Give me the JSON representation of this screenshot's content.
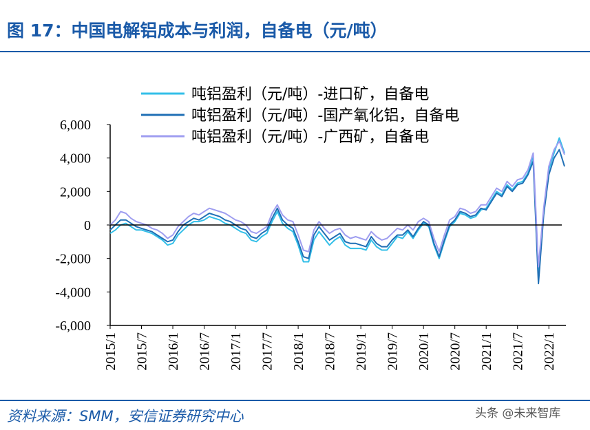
{
  "chart_data": {
    "type": "line",
    "title": "图 17：中国电解铝成本与利润，自备电（元/吨）",
    "source": "资料来源：SMM，安信证券研究中心",
    "watermark": "头条 @未来智库",
    "categories": [
      "2015/1",
      null,
      null,
      null,
      null,
      null,
      "2015/7",
      null,
      null,
      null,
      null,
      null,
      "2016/1",
      null,
      null,
      null,
      null,
      null,
      "2016/7",
      null,
      null,
      null,
      null,
      null,
      "2017/1",
      null,
      null,
      null,
      null,
      null,
      "2017/7",
      null,
      null,
      null,
      null,
      null,
      "2018/1",
      null,
      null,
      null,
      null,
      null,
      "2018/7",
      null,
      null,
      null,
      null,
      null,
      "2019/1",
      null,
      null,
      null,
      null,
      null,
      "2019/7",
      null,
      null,
      null,
      null,
      null,
      "2020/1",
      null,
      null,
      null,
      null,
      null,
      "2020/7",
      null,
      null,
      null,
      null,
      null,
      "2021/1",
      null,
      null,
      null,
      null,
      null,
      "2021/7",
      null,
      null,
      null,
      null,
      null,
      "2022/1",
      null,
      null,
      null
    ],
    "series": [
      {
        "name": "吨铝盈利（元/吨）-进口矿，自备电",
        "color": "#33bfe8",
        "values": [
          -500,
          -300,
          0,
          100,
          -100,
          -300,
          -300,
          -400,
          -500,
          -700,
          -900,
          -1200,
          -1100,
          -600,
          -300,
          0,
          200,
          200,
          300,
          500,
          400,
          300,
          100,
          0,
          -200,
          -400,
          -500,
          -900,
          -1000,
          -700,
          -500,
          200,
          800,
          100,
          -200,
          -400,
          -1200,
          -2200,
          -2200,
          -900,
          -400,
          -800,
          -1200,
          -900,
          -700,
          -1200,
          -1400,
          -1400,
          -1400,
          -1500,
          -900,
          -1300,
          -1500,
          -1500,
          -1100,
          -700,
          -800,
          -400,
          -800,
          -300,
          100,
          -100,
          -1200,
          -2000,
          -1000,
          -100,
          200,
          700,
          600,
          400,
          500,
          900,
          1000,
          1500,
          2000,
          1800,
          2400,
          2100,
          2500,
          2600,
          3100,
          4100,
          -3000,
          800,
          3300,
          4300,
          5200,
          4300
        ]
      },
      {
        "name": "吨铝盈利（元/吨）-国产氧化铝，自备电",
        "color": "#1f6fb5",
        "values": [
          -300,
          0,
          300,
          300,
          100,
          -100,
          -200,
          -300,
          -400,
          -600,
          -800,
          -1000,
          -900,
          -400,
          0,
          200,
          400,
          300,
          500,
          700,
          600,
          500,
          300,
          200,
          0,
          -200,
          -300,
          -700,
          -800,
          -500,
          -300,
          400,
          1000,
          300,
          0,
          -200,
          -1000,
          -1900,
          -2000,
          -600,
          -100,
          -500,
          -900,
          -700,
          -500,
          -1000,
          -1100,
          -1100,
          -1200,
          -1300,
          -700,
          -1100,
          -1300,
          -1300,
          -900,
          -600,
          -600,
          -300,
          -700,
          -200,
          200,
          0,
          -1100,
          -1900,
          -900,
          0,
          300,
          800,
          700,
          500,
          600,
          1000,
          900,
          1400,
          1900,
          1700,
          2300,
          2000,
          2400,
          2500,
          3000,
          3800,
          -3500,
          600,
          3000,
          4000,
          4500,
          3500
        ]
      },
      {
        "name": "吨铝盈利（元/吨）-广西矿，自备电",
        "color": "#9f9ef0",
        "values": [
          0,
          300,
          800,
          700,
          400,
          200,
          100,
          0,
          -200,
          -300,
          -500,
          -800,
          -600,
          -100,
          200,
          500,
          700,
          600,
          800,
          1000,
          900,
          800,
          700,
          500,
          300,
          200,
          0,
          -400,
          -500,
          -300,
          -100,
          700,
          1200,
          600,
          300,
          200,
          -600,
          -1500,
          -1600,
          -300,
          200,
          -200,
          -500,
          -300,
          -200,
          -600,
          -800,
          -700,
          -800,
          -900,
          -400,
          -700,
          -900,
          -800,
          -500,
          -200,
          -300,
          0,
          -300,
          200,
          400,
          200,
          -800,
          -1600,
          -600,
          300,
          500,
          1000,
          900,
          700,
          800,
          1200,
          1200,
          1700,
          2200,
          2000,
          2600,
          2300,
          2700,
          2800,
          3300,
          4300,
          -2500,
          1000,
          3500,
          4500,
          5000,
          4200
        ]
      }
    ],
    "ylim": [
      -6000,
      6000
    ],
    "yticks": [
      {
        "value": -6000,
        "label": "-6,000"
      },
      {
        "value": -4000,
        "label": "-4,000"
      },
      {
        "value": -2000,
        "label": "-2,000"
      },
      0,
      {
        "value": 2000,
        "label": "2,000"
      },
      {
        "value": 4000,
        "label": "4,000"
      },
      {
        "value": 6000,
        "label": "6,000"
      }
    ],
    "legend": "upper-left"
  }
}
